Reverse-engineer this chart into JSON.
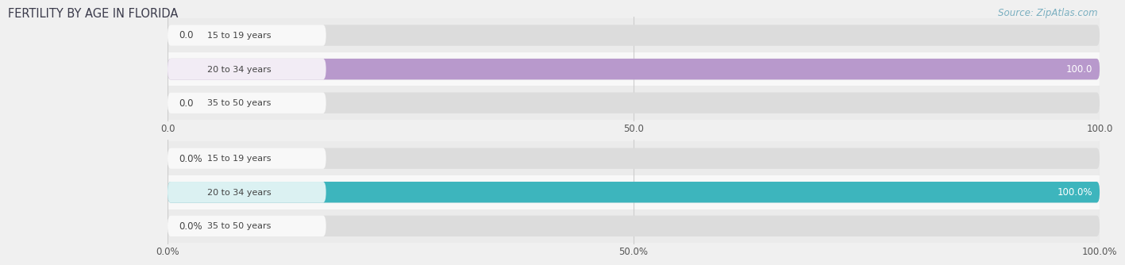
{
  "title": "FERTILITY BY AGE IN FLORIDA",
  "source": "Source: ZipAtlas.com",
  "title_color": "#3a3a4a",
  "title_fontsize": 10.5,
  "source_color": "#7aafc0",
  "background_color": "#f0f0f0",
  "row_bg_odd": "#ebebeb",
  "row_bg_even": "#f8f8f8",
  "top_chart": {
    "categories": [
      "15 to 19 years",
      "20 to 34 years",
      "35 to 50 years"
    ],
    "values": [
      0.0,
      100.0,
      0.0
    ],
    "bar_color": "#b899cc",
    "track_color": "#dcdcdc",
    "label_color": "#444444",
    "xlim": [
      0,
      100
    ],
    "xticks": [
      0.0,
      50.0,
      100.0
    ],
    "xticklabels": [
      "0.0",
      "50.0",
      "100.0"
    ]
  },
  "bottom_chart": {
    "categories": [
      "15 to 19 years",
      "20 to 34 years",
      "35 to 50 years"
    ],
    "values": [
      0.0,
      100.0,
      0.0
    ],
    "bar_color": "#3db5bd",
    "track_color": "#dcdcdc",
    "label_color": "#444444",
    "xlim": [
      0,
      100
    ],
    "xticks": [
      0.0,
      50.0,
      100.0
    ],
    "xticklabels": [
      "0.0%",
      "50.0%",
      "100.0%"
    ]
  },
  "bar_height": 0.62,
  "figsize": [
    14.06,
    3.3
  ],
  "dpi": 100
}
